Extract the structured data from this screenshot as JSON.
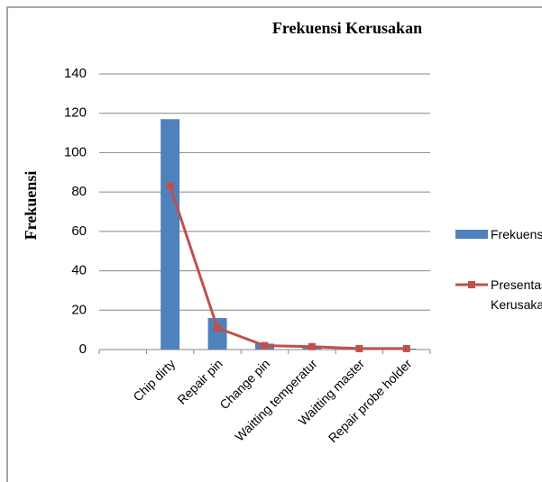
{
  "chart_data": {
    "type": "bar-line",
    "title": "Frekuensi Kerusakan",
    "y_label": "Frekuensi",
    "categories": [
      null,
      "Chip dirty",
      "Repair pin",
      "Change pin",
      "Waitting temperatur",
      "Waitting master",
      "Repair probe holder"
    ],
    "series": [
      {
        "name": "Frekuensi",
        "type": "bar",
        "color": "#4f81bd",
        "values": [
          null,
          117,
          16,
          3,
          1,
          0.5,
          0.5
        ]
      },
      {
        "name": "Presentase Kerusakan",
        "type": "line",
        "color": "#c0504d",
        "values": [
          null,
          83,
          11,
          2,
          1.5,
          0.5,
          0.5
        ]
      }
    ],
    "ylim": [
      0,
      140
    ],
    "yticks": [
      0,
      20,
      40,
      60,
      80,
      100,
      120,
      140
    ],
    "grid": true,
    "legend": "right"
  }
}
